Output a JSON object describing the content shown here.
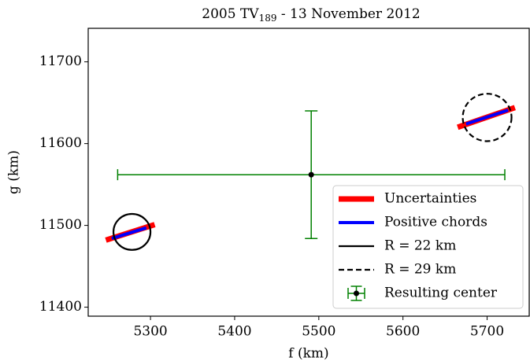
{
  "chart_data": {
    "type": "scatter",
    "title": {
      "text": "2005 TV",
      "subscript": "189",
      "suffix": " - 13 November 2012"
    },
    "xlabel": "f (km)",
    "ylabel": "g (km)",
    "xlim": [
      5226,
      5750
    ],
    "ylim": [
      11389,
      11741
    ],
    "xticks": [
      5300,
      5400,
      5500,
      5600,
      5700
    ],
    "yticks": [
      11400,
      11500,
      11600,
      11700
    ],
    "legend": "lower right",
    "series": [
      {
        "name": "Uncertainties",
        "kind": "segments",
        "color": "#ff0000",
        "width": 7,
        "segments": [
          {
            "x": [
              5247,
              5305
            ],
            "y": [
              11482,
              11501
            ]
          },
          {
            "x": [
              5665,
              5733
            ],
            "y": [
              11620,
              11644
            ]
          }
        ]
      },
      {
        "name": "Positive chords",
        "kind": "segments",
        "color": "#0000ff",
        "width": 4,
        "segments": [
          {
            "x": [
              5254,
              5295
            ],
            "y": [
              11484,
              11497
            ]
          },
          {
            "x": [
              5675,
              5725
            ],
            "y": [
              11624,
              11641
            ]
          }
        ]
      },
      {
        "name": "R = 22 km",
        "kind": "circle",
        "color": "#000000",
        "dashed": false,
        "x": 5278,
        "y": 11492,
        "r": 22
      },
      {
        "name": "R = 29 km",
        "kind": "circle",
        "color": "#000000",
        "dashed": true,
        "x": 5700,
        "y": 11632,
        "r": 29
      },
      {
        "name": "Resulting center",
        "kind": "errorbar",
        "color": "#008000",
        "x": 5491,
        "y": 11562,
        "xerr": 230,
        "yerr": 78
      }
    ]
  }
}
